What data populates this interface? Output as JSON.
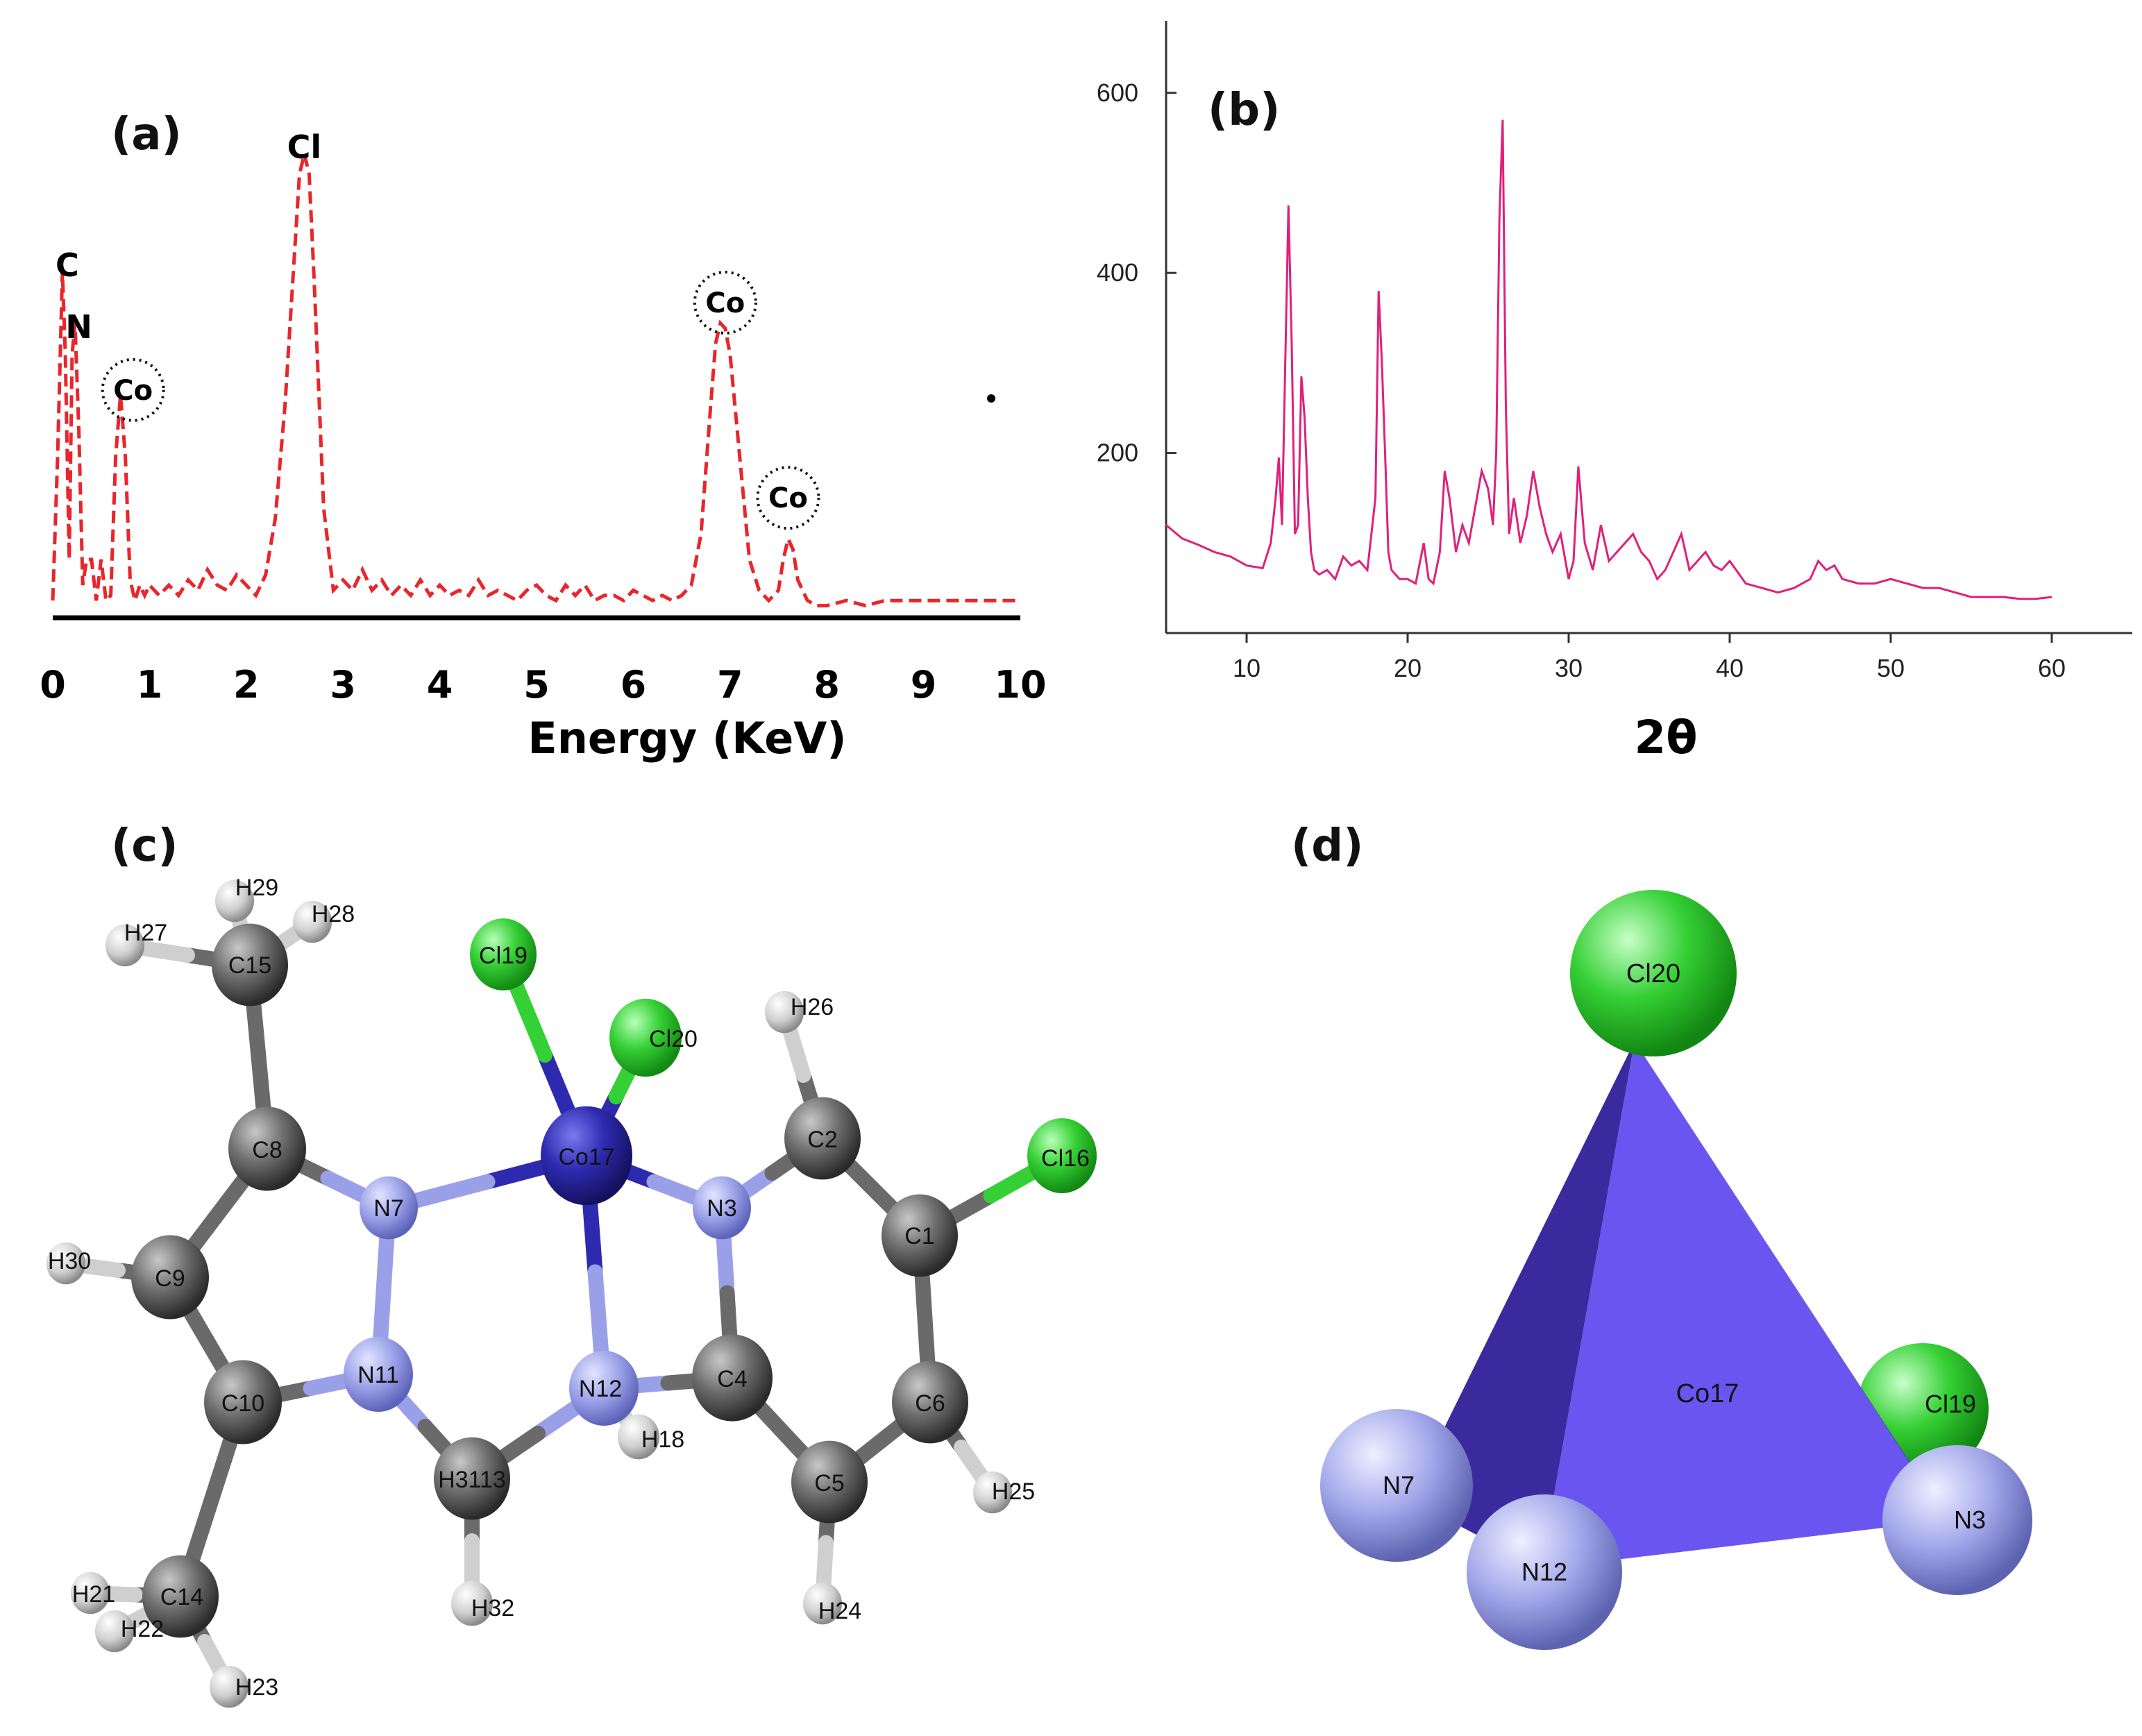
{
  "panels": [
    {
      "letter": "(a)"
    },
    {
      "letter": "(b)"
    },
    {
      "letter": "(c)"
    },
    {
      "letter": "(d)"
    }
  ],
  "chart_data": [
    {
      "type": "line",
      "panel": "(a)",
      "xlabel": "Energy (KeV)",
      "ylabel": "",
      "xlim": [
        0,
        10
      ],
      "x_ticks": [
        "0",
        "1",
        "2",
        "3",
        "4",
        "5",
        "6",
        "7",
        "8",
        "9",
        "10"
      ],
      "line_color": "#e8262b",
      "line_style": "dashed",
      "annotations": [
        {
          "label": "C",
          "x": 0.15,
          "y": 0.67
        },
        {
          "label": "N",
          "x": 0.27,
          "y": 0.55
        },
        {
          "label": "Co",
          "x": 0.83,
          "y": 0.43,
          "circled": true
        },
        {
          "label": "Cl",
          "x": 2.6,
          "y": 0.9
        },
        {
          "label": "Co",
          "x": 6.95,
          "y": 0.6,
          "circled": true
        },
        {
          "label": "Co",
          "x": 7.6,
          "y": 0.22,
          "circled": true
        }
      ],
      "series": [
        {
          "x": [
            0.0,
            0.05,
            0.1,
            0.13,
            0.17,
            0.2,
            0.23,
            0.27,
            0.31,
            0.35,
            0.4,
            0.45,
            0.5,
            0.55,
            0.6,
            0.65,
            0.7,
            0.75,
            0.8,
            0.85,
            0.9,
            0.95,
            1.0,
            1.1,
            1.2,
            1.3,
            1.4,
            1.5,
            1.6,
            1.7,
            1.8,
            1.9,
            2.0,
            2.1,
            2.2,
            2.3,
            2.4,
            2.5,
            2.55,
            2.6,
            2.65,
            2.7,
            2.8,
            2.9,
            3.0,
            3.1,
            3.2,
            3.3,
            3.4,
            3.5,
            3.6,
            3.7,
            3.8,
            3.9,
            4.0,
            4.1,
            4.2,
            4.3,
            4.4,
            4.5,
            4.6,
            4.7,
            4.8,
            4.9,
            5.0,
            5.1,
            5.2,
            5.3,
            5.4,
            5.5,
            5.6,
            5.7,
            5.8,
            5.9,
            6.0,
            6.1,
            6.2,
            6.3,
            6.4,
            6.5,
            6.6,
            6.7,
            6.8,
            6.85,
            6.9,
            6.95,
            7.0,
            7.1,
            7.2,
            7.3,
            7.4,
            7.5,
            7.55,
            7.6,
            7.65,
            7.7,
            7.8,
            7.9,
            8.0,
            8.2,
            8.4,
            8.6,
            8.8,
            9.0,
            9.5,
            10.0
          ],
          "y": [
            0.02,
            0.3,
            0.66,
            0.5,
            0.1,
            0.5,
            0.56,
            0.35,
            0.05,
            0.1,
            0.1,
            0.02,
            0.1,
            0.02,
            0.03,
            0.3,
            0.42,
            0.3,
            0.06,
            0.02,
            0.05,
            0.03,
            0.05,
            0.03,
            0.05,
            0.03,
            0.06,
            0.04,
            0.08,
            0.05,
            0.04,
            0.07,
            0.05,
            0.03,
            0.07,
            0.18,
            0.4,
            0.7,
            0.85,
            0.89,
            0.85,
            0.65,
            0.2,
            0.04,
            0.06,
            0.04,
            0.08,
            0.04,
            0.06,
            0.03,
            0.05,
            0.03,
            0.06,
            0.03,
            0.05,
            0.03,
            0.04,
            0.03,
            0.06,
            0.03,
            0.04,
            0.03,
            0.02,
            0.04,
            0.05,
            0.03,
            0.02,
            0.05,
            0.03,
            0.05,
            0.02,
            0.03,
            0.03,
            0.02,
            0.04,
            0.03,
            0.02,
            0.03,
            0.02,
            0.03,
            0.05,
            0.15,
            0.4,
            0.52,
            0.56,
            0.55,
            0.5,
            0.3,
            0.1,
            0.04,
            0.02,
            0.04,
            0.1,
            0.14,
            0.12,
            0.06,
            0.02,
            0.01,
            0.01,
            0.02,
            0.01,
            0.02,
            0.02,
            0.02,
            0.02,
            0.02
          ]
        }
      ]
    },
    {
      "type": "line",
      "panel": "(b)",
      "xlabel": "2θ",
      "ylabel": "",
      "xlim": [
        5,
        65
      ],
      "ylim": [
        0,
        680
      ],
      "x_ticks": [
        "10",
        "20",
        "30",
        "40",
        "50",
        "60"
      ],
      "y_ticks": [
        "200",
        "400",
        "600"
      ],
      "line_color": "#e0207a",
      "series": [
        {
          "x": [
            5,
            6,
            7,
            8,
            9,
            10,
            11,
            11.5,
            11.8,
            12.0,
            12.2,
            12.4,
            12.6,
            12.8,
            13.0,
            13.2,
            13.4,
            13.6,
            13.8,
            14.0,
            14.2,
            14.5,
            15,
            15.5,
            16,
            16.5,
            17,
            17.5,
            18,
            18.2,
            18.4,
            18.6,
            18.8,
            19,
            19.5,
            20,
            20.5,
            21,
            21.3,
            21.6,
            22,
            22.3,
            22.6,
            23,
            23.4,
            23.8,
            24.2,
            24.6,
            25,
            25.3,
            25.5,
            25.7,
            25.9,
            26.1,
            26.3,
            26.6,
            27,
            27.4,
            27.8,
            28.2,
            28.6,
            29,
            29.5,
            30,
            30.3,
            30.6,
            31,
            31.5,
            32,
            32.5,
            33,
            33.5,
            34,
            34.5,
            35,
            35.5,
            36,
            36.5,
            37,
            37.5,
            38,
            38.5,
            39,
            39.5,
            40,
            41,
            42,
            43,
            44,
            45,
            45.5,
            46,
            46.5,
            47,
            48,
            49,
            50,
            51,
            52,
            53,
            54,
            55,
            56,
            57,
            58,
            59,
            60
          ],
          "y": [
            120,
            105,
            98,
            90,
            85,
            75,
            72,
            100,
            150,
            195,
            120,
            300,
            475,
            320,
            110,
            120,
            285,
            240,
            150,
            90,
            70,
            65,
            70,
            60,
            85,
            75,
            80,
            70,
            150,
            380,
            300,
            200,
            90,
            70,
            60,
            60,
            55,
            100,
            60,
            55,
            90,
            180,
            150,
            90,
            120,
            100,
            140,
            180,
            160,
            120,
            200,
            460,
            570,
            250,
            110,
            150,
            100,
            130,
            180,
            140,
            110,
            90,
            110,
            60,
            80,
            185,
            100,
            70,
            120,
            80,
            90,
            100,
            110,
            90,
            80,
            60,
            70,
            90,
            110,
            70,
            80,
            90,
            75,
            70,
            80,
            55,
            50,
            45,
            50,
            60,
            80,
            70,
            75,
            60,
            55,
            55,
            60,
            55,
            50,
            50,
            45,
            40,
            40,
            40,
            38,
            38,
            40
          ]
        }
      ]
    }
  ],
  "molecule_c": {
    "atoms": [
      {
        "label": "Cl19",
        "color": "#35d035"
      },
      {
        "label": "Cl20",
        "color": "#35d035"
      },
      {
        "label": "Cl16",
        "color": "#35d035"
      },
      {
        "label": "Co17",
        "color": "#2e2ab0"
      },
      {
        "label": "N7",
        "color": "#9aa0e8"
      },
      {
        "label": "N3",
        "color": "#9aa0e8"
      },
      {
        "label": "N11",
        "color": "#9aa0e8"
      },
      {
        "label": "N12",
        "color": "#9aa0e8"
      },
      {
        "label": "C15",
        "color": "#6a6a6a"
      },
      {
        "label": "C8",
        "color": "#6a6a6a"
      },
      {
        "label": "C9",
        "color": "#6a6a6a"
      },
      {
        "label": "C10",
        "color": "#6a6a6a"
      },
      {
        "label": "C14",
        "color": "#6a6a6a"
      },
      {
        "label": "C2",
        "color": "#6a6a6a"
      },
      {
        "label": "C1",
        "color": "#6a6a6a"
      },
      {
        "label": "C4",
        "color": "#6a6a6a"
      },
      {
        "label": "C6",
        "color": "#6a6a6a"
      },
      {
        "label": "C5",
        "color": "#6a6a6a"
      },
      {
        "label": "H31",
        "label2": "13",
        "color": "#6a6a6a"
      },
      {
        "label": "H29",
        "color": "#dcdcdc"
      },
      {
        "label": "H28",
        "color": "#dcdcdc"
      },
      {
        "label": "H27",
        "color": "#dcdcdc"
      },
      {
        "label": "H26",
        "color": "#dcdcdc"
      },
      {
        "label": "H30",
        "color": "#dcdcdc"
      },
      {
        "label": "H18",
        "color": "#dcdcdc"
      },
      {
        "label": "H25",
        "color": "#dcdcdc"
      },
      {
        "label": "H32",
        "color": "#dcdcdc"
      },
      {
        "label": "H24",
        "color": "#dcdcdc"
      },
      {
        "label": "H21",
        "color": "#dcdcdc"
      },
      {
        "label": "H22",
        "color": "#dcdcdc"
      },
      {
        "label": "H23",
        "color": "#dcdcdc"
      }
    ]
  },
  "tetrahedron_d": {
    "center_label": "Co17",
    "face_color": "#6a55f0",
    "atoms": [
      {
        "label": "Cl20",
        "color": "#35d035"
      },
      {
        "label": "Cl19",
        "color": "#35d035"
      },
      {
        "label": "N7",
        "color": "#9aa0e8"
      },
      {
        "label": "N12",
        "color": "#9aa0e8"
      },
      {
        "label": "N3",
        "color": "#9aa0e8"
      }
    ]
  }
}
